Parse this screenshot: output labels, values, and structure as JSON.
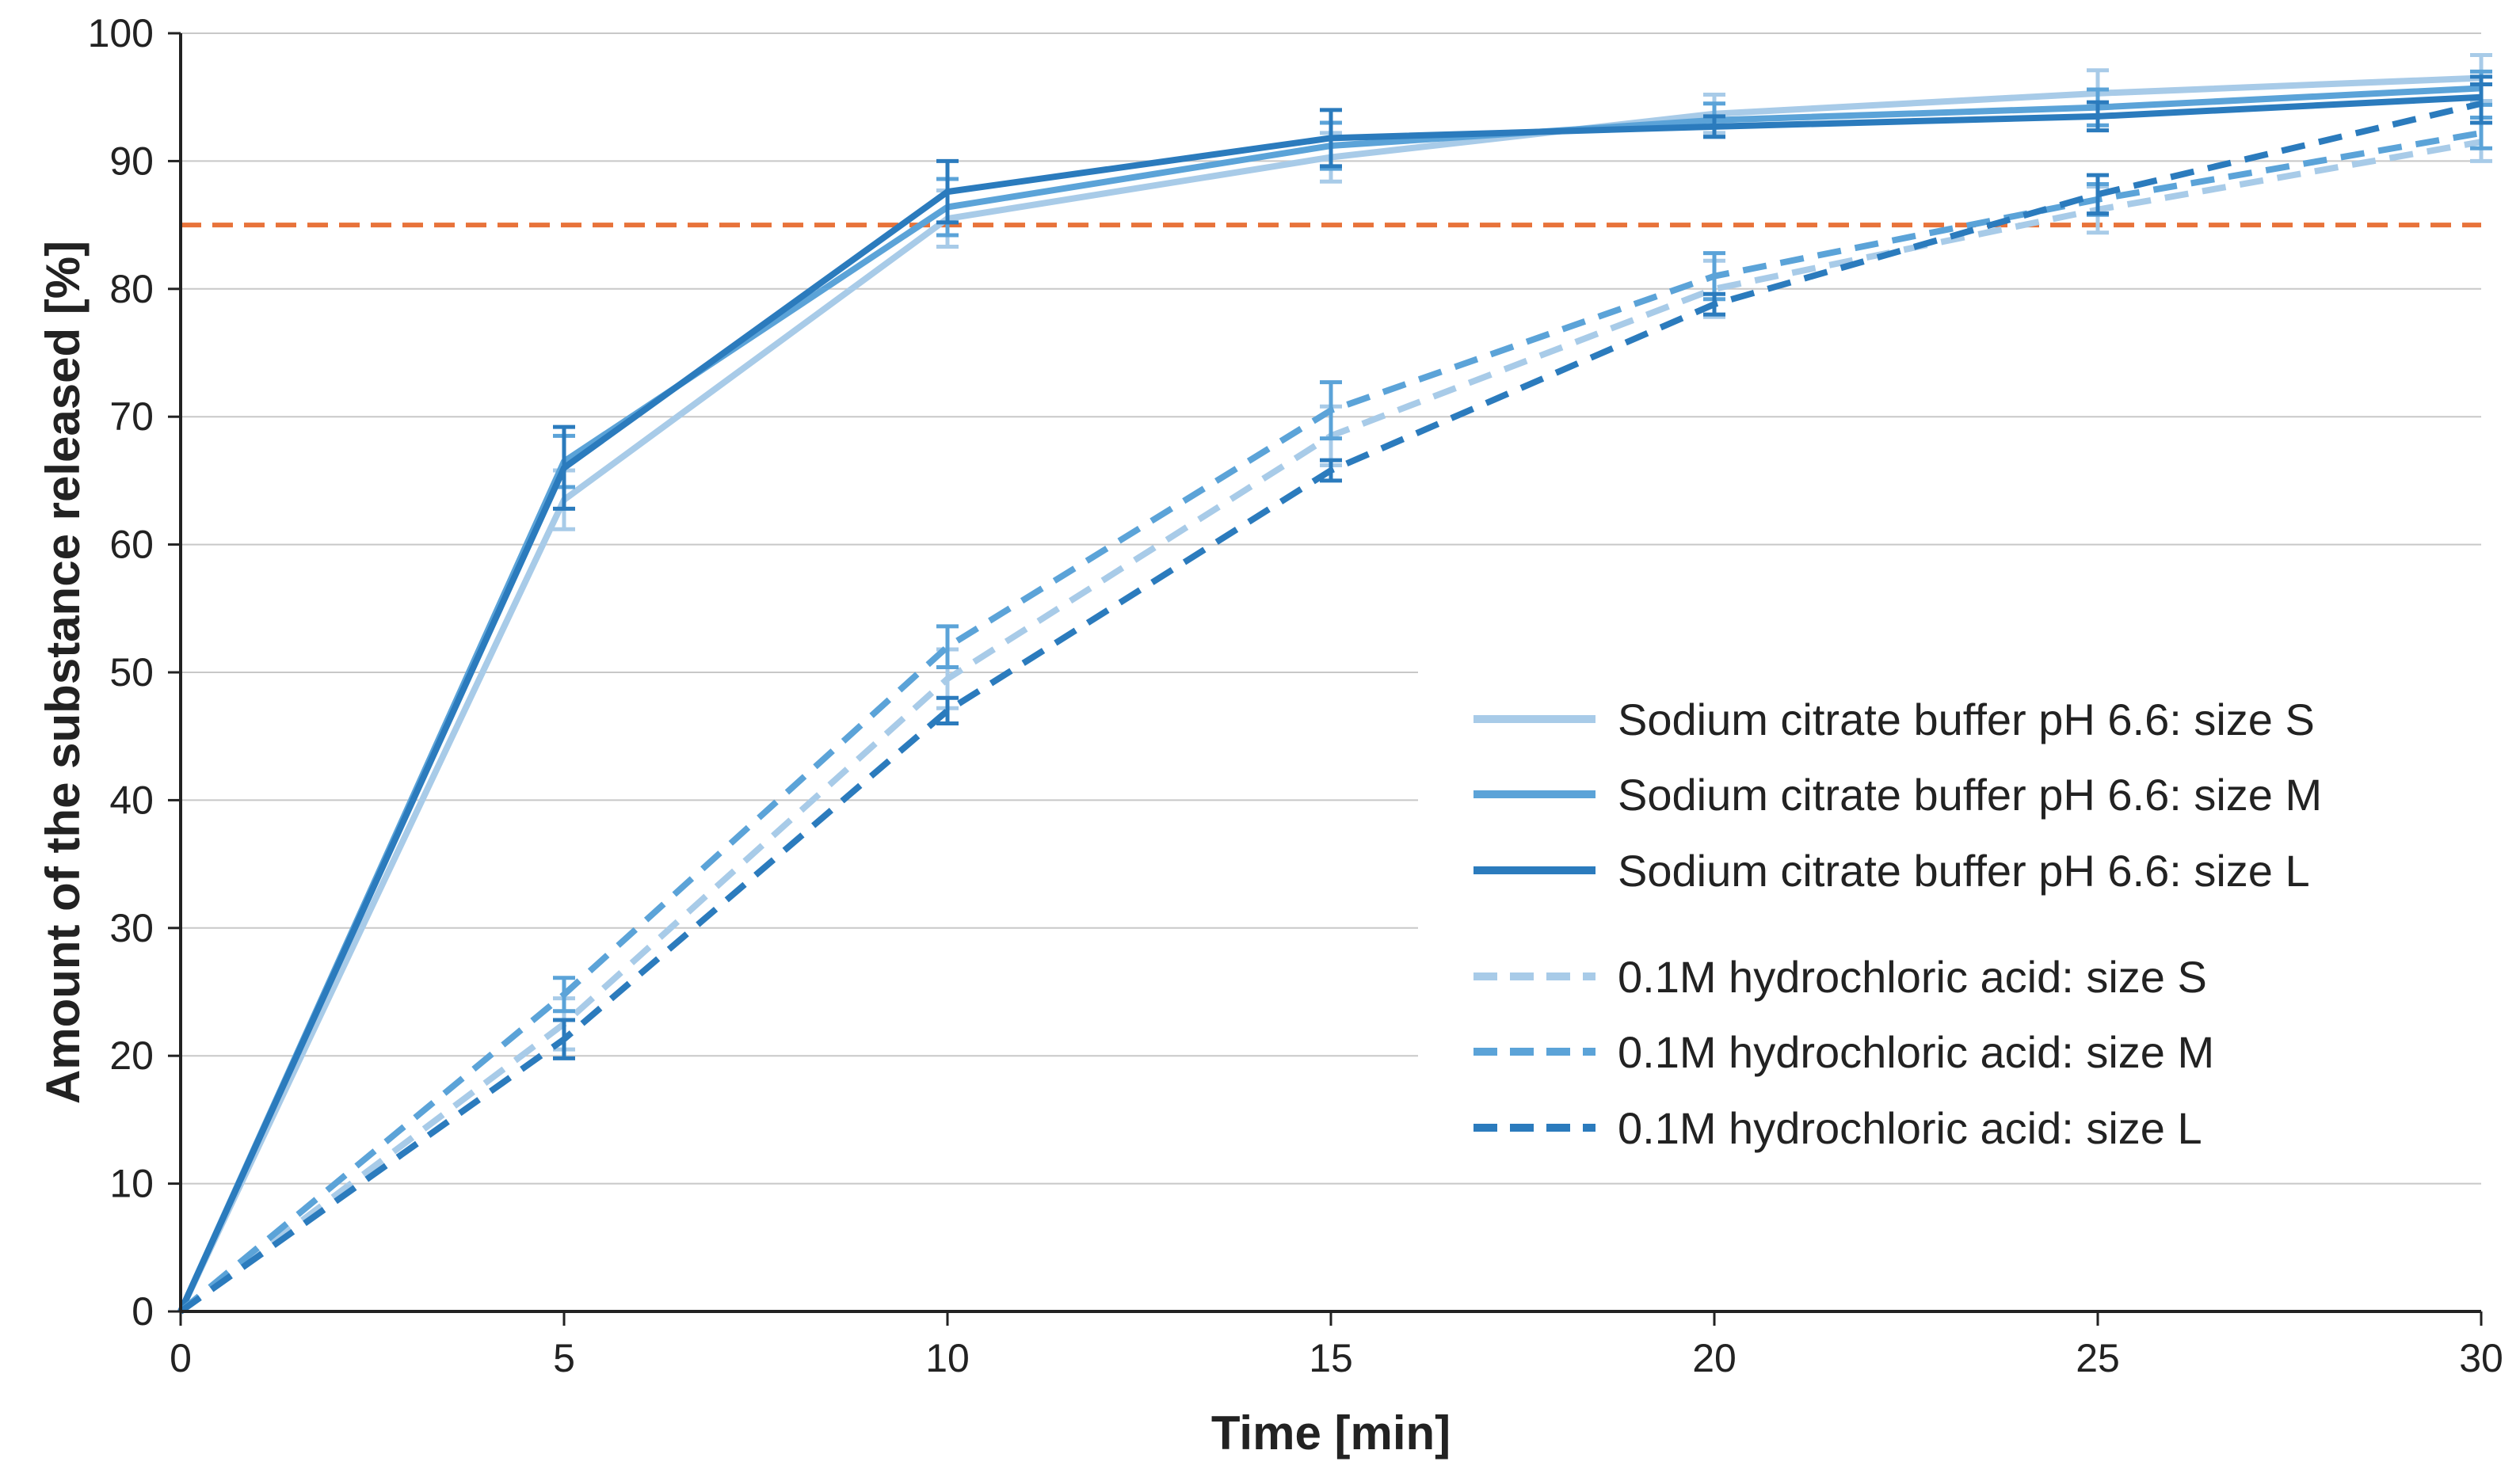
{
  "chart_data": {
    "type": "line",
    "title": "",
    "xlabel": "Time [min]",
    "ylabel": "Amount of the substance released [%]",
    "xlim": [
      0,
      30
    ],
    "ylim": [
      0,
      100
    ],
    "x": [
      0,
      5,
      10,
      15,
      20,
      25,
      30
    ],
    "x_tick_labels": [
      "0",
      "5",
      "10",
      "15",
      "20",
      "25",
      "30"
    ],
    "y_tick_labels": [
      "0",
      "10",
      "20",
      "30",
      "40",
      "50",
      "60",
      "70",
      "80",
      "90",
      "100"
    ],
    "grid": true,
    "reference_line": {
      "y": 85,
      "style": "dashed",
      "color": "#e8733a"
    },
    "legend_position": "lower-right",
    "series": [
      {
        "name": "Sodium citrate buffer pH 6.6: size S",
        "style": "solid",
        "color": "#a8cbe8",
        "values": [
          0,
          63.5,
          85.5,
          90.3,
          93.7,
          95.3,
          96.5
        ],
        "errors": [
          0,
          2.3,
          2.2,
          1.9,
          1.5,
          1.8,
          1.8
        ]
      },
      {
        "name": "Sodium citrate buffer pH 6.6: size M",
        "style": "solid",
        "color": "#5ba3d8",
        "values": [
          0,
          66.5,
          86.4,
          91.2,
          93.2,
          94.2,
          95.7
        ],
        "errors": [
          0,
          2.0,
          2.2,
          1.8,
          1.3,
          1.4,
          1.3
        ]
      },
      {
        "name": "Sodium citrate buffer pH 6.6: size L",
        "style": "solid",
        "color": "#2b7bbd",
        "values": [
          0,
          66.0,
          87.6,
          91.8,
          92.7,
          93.5,
          95.0
        ],
        "errors": [
          0,
          3.2,
          2.4,
          2.2,
          0.8,
          1.1,
          1.6
        ]
      },
      {
        "name": "0.1M hydrochloric acid: size S",
        "style": "dashed",
        "color": "#a8cbe8",
        "values": [
          0,
          22.5,
          49.5,
          68.5,
          80.0,
          86.2,
          91.5
        ],
        "errors": [
          0,
          2.0,
          2.3,
          2.3,
          2.2,
          1.8,
          1.5
        ]
      },
      {
        "name": "0.1M hydrochloric acid: size M",
        "style": "dashed",
        "color": "#5ba3d8",
        "values": [
          0,
          24.8,
          52.0,
          70.5,
          81.0,
          87.0,
          92.2
        ],
        "errors": [
          0,
          1.3,
          1.6,
          2.2,
          1.8,
          1.2,
          1.2
        ]
      },
      {
        "name": "0.1M hydrochloric acid: size L",
        "style": "dashed",
        "color": "#2b7bbd",
        "values": [
          0,
          21.3,
          47.0,
          65.8,
          78.8,
          87.4,
          94.5
        ],
        "errors": [
          0,
          1.5,
          1.0,
          0.8,
          0.8,
          1.5,
          1.5
        ]
      }
    ]
  }
}
